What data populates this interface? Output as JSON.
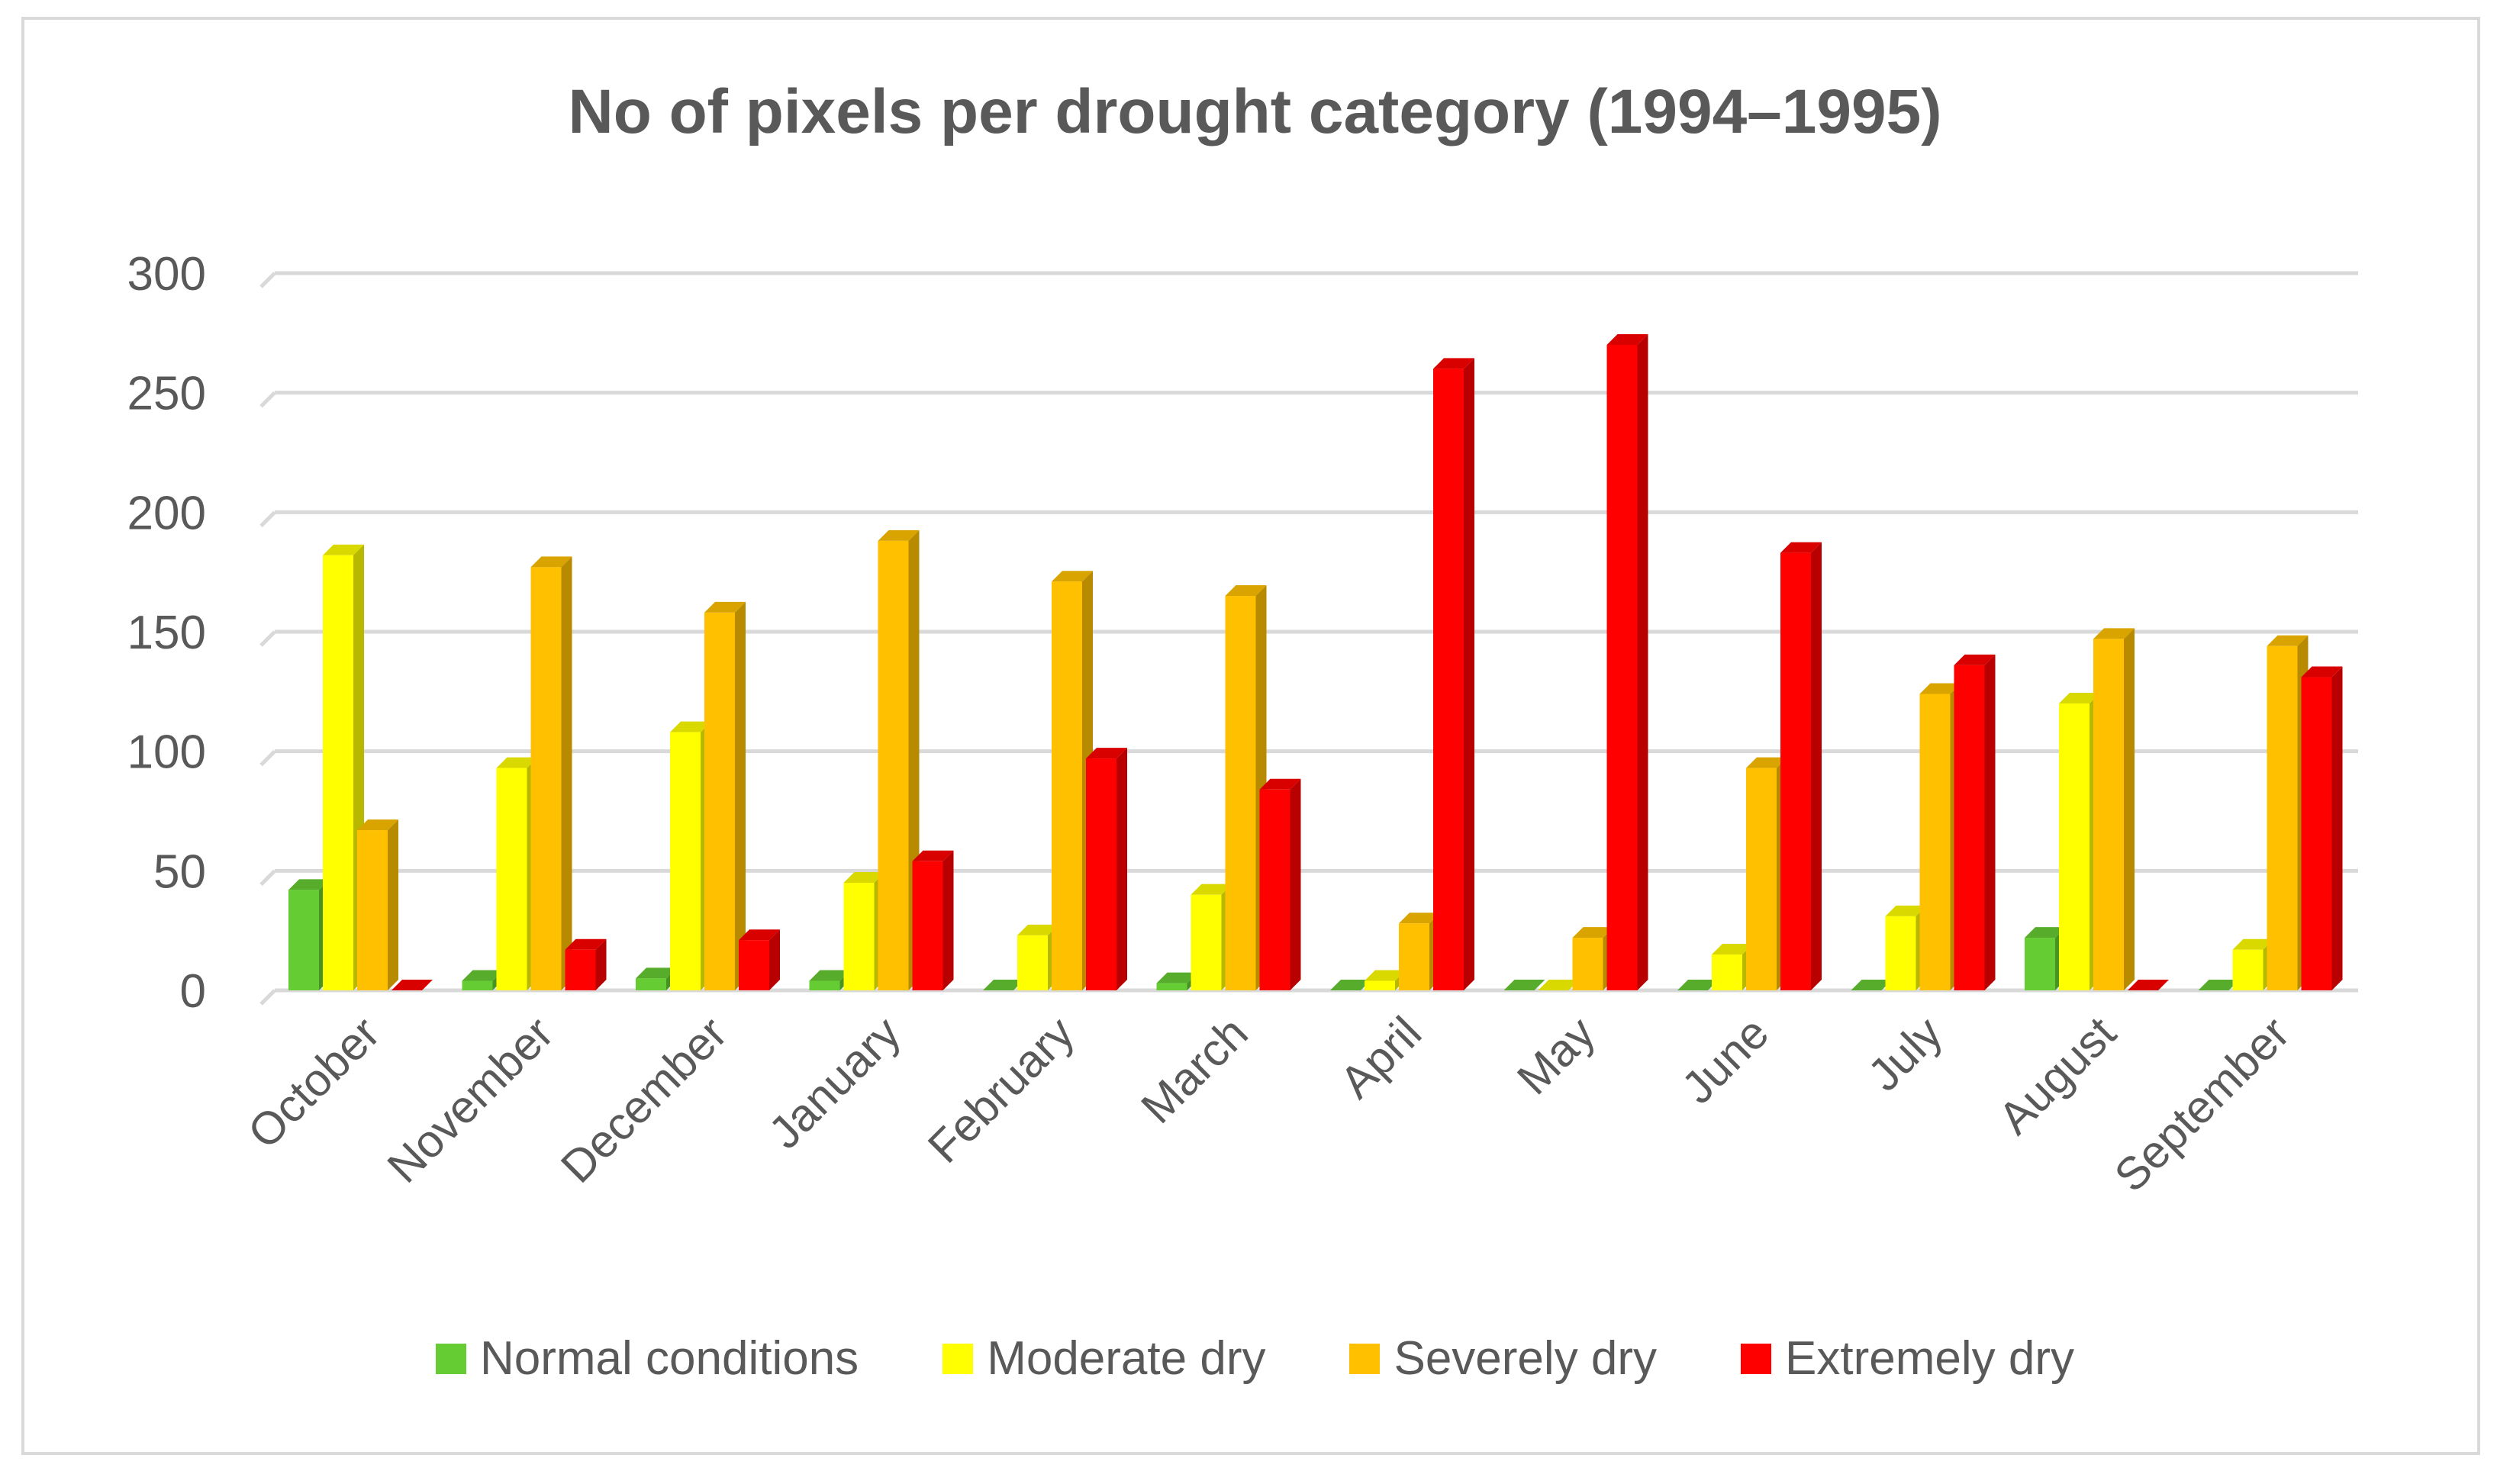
{
  "chart_data": {
    "type": "bar",
    "title": "No of pixels per drought category (1994–1995)",
    "xlabel": "",
    "ylabel": "",
    "ylim": [
      0,
      300
    ],
    "yticks": [
      0,
      50,
      100,
      150,
      200,
      250,
      300
    ],
    "grid": true,
    "legend_position": "bottom",
    "categories": [
      "October",
      "November",
      "December",
      "January",
      "February",
      "March",
      "April",
      "May",
      "June",
      "July",
      "August",
      "September"
    ],
    "series": [
      {
        "name": "Normal conditions",
        "color": "#66cc33",
        "values": [
          42,
          4,
          5,
          4,
          0,
          3,
          0,
          0,
          0,
          0,
          22,
          0
        ]
      },
      {
        "name": "Moderate dry",
        "color": "#ffff00",
        "values": [
          182,
          93,
          108,
          45,
          23,
          40,
          4,
          0,
          15,
          31,
          120,
          17
        ]
      },
      {
        "name": "Severely dry",
        "color": "#ffc000",
        "values": [
          67,
          177,
          158,
          188,
          171,
          165,
          28,
          22,
          93,
          124,
          147,
          144
        ]
      },
      {
        "name": "Extremely dry",
        "color": "#ff0000",
        "values": [
          0,
          17,
          21,
          54,
          97,
          84,
          260,
          270,
          183,
          136,
          0,
          131
        ]
      }
    ]
  }
}
